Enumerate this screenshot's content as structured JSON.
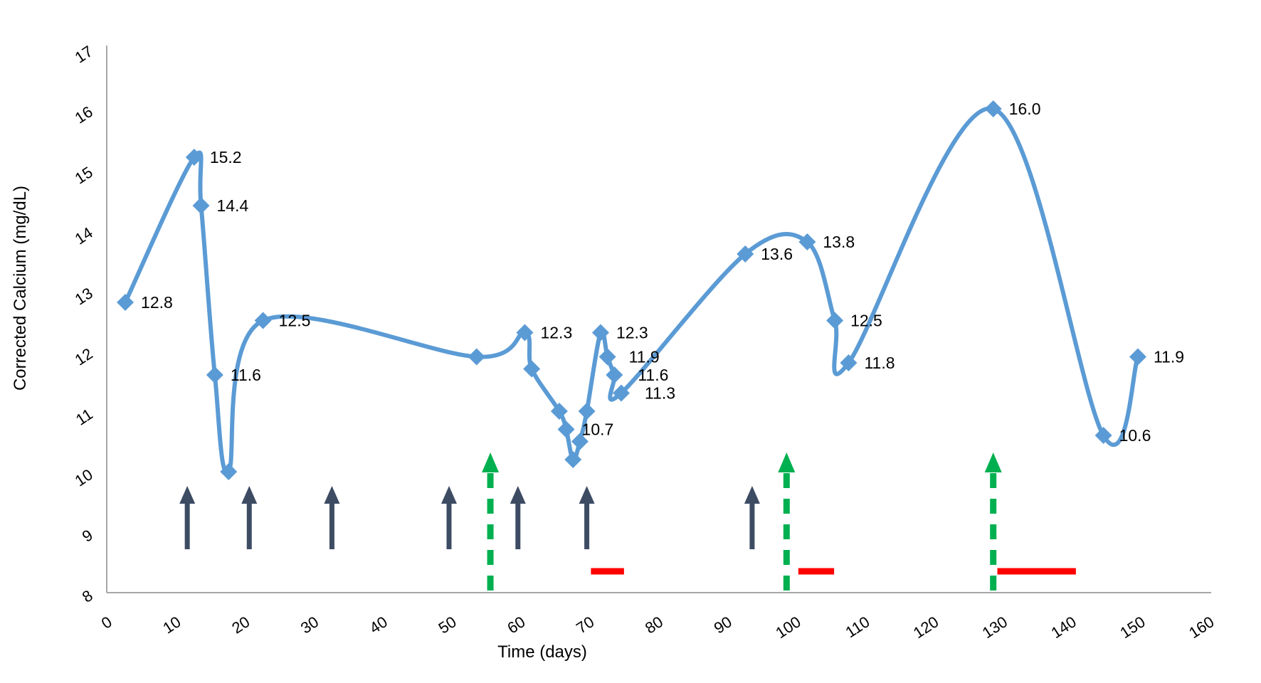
{
  "chart_data": {
    "type": "line",
    "title": "",
    "xlabel": "Time (days)",
    "ylabel": "Corrected Calcium (mg/dL)",
    "xlim": [
      0,
      160
    ],
    "ylim": [
      8,
      17
    ],
    "x_ticks": [
      0,
      10,
      20,
      30,
      40,
      50,
      60,
      70,
      80,
      90,
      100,
      110,
      120,
      130,
      140,
      150,
      160
    ],
    "y_ticks": [
      8,
      9,
      10,
      11,
      12,
      13,
      14,
      15,
      16,
      17
    ],
    "grid": false,
    "legend": false,
    "series": [
      {
        "name": "Corrected Calcium",
        "color": "#5B9BD5",
        "smooth": true,
        "points": [
          {
            "day": 3,
            "value": 12.8,
            "label": "12.8"
          },
          {
            "day": 13,
            "value": 15.2,
            "label": "15.2"
          },
          {
            "day": 14,
            "value": 14.4,
            "label": "14.4"
          },
          {
            "day": 16,
            "value": 11.6,
            "label": "11.6"
          },
          {
            "day": 18,
            "value": 10.0
          },
          {
            "day": 23,
            "value": 12.5,
            "label": "12.5"
          },
          {
            "day": 54,
            "value": 11.9
          },
          {
            "day": 61,
            "value": 12.3,
            "label": "12.3"
          },
          {
            "day": 62,
            "value": 11.7
          },
          {
            "day": 66,
            "value": 11.0
          },
          {
            "day": 67,
            "value": 10.7,
            "label": "10.7"
          },
          {
            "day": 68,
            "value": 10.2
          },
          {
            "day": 69,
            "value": 10.5
          },
          {
            "day": 70,
            "value": 11.0
          },
          {
            "day": 72,
            "value": 12.3,
            "label": "12.3"
          },
          {
            "day": 73,
            "value": 11.9,
            "label": "11.9",
            "ldx": 30
          },
          {
            "day": 74,
            "value": 11.6,
            "label": "11.6",
            "ldx": 33
          },
          {
            "day": 75,
            "value": 11.3,
            "label": "11.3",
            "ldx": 33
          },
          {
            "day": 93,
            "value": 13.6,
            "label": "13.6"
          },
          {
            "day": 102,
            "value": 13.8,
            "label": "13.8"
          },
          {
            "day": 106,
            "value": 12.5,
            "label": "12.5"
          },
          {
            "day": 108,
            "value": 11.8,
            "label": "11.8"
          },
          {
            "day": 129,
            "value": 16.0,
            "label": "16.0"
          },
          {
            "day": 145,
            "value": 10.6,
            "label": "10.6"
          },
          {
            "day": 150,
            "value": 11.9,
            "label": "11.9"
          }
        ]
      }
    ],
    "annotations": {
      "solid_arrows": {
        "name": "treatment-arrow-solid",
        "color": "#3D4C63",
        "days": [
          12,
          21,
          33,
          50,
          60,
          70,
          94
        ]
      },
      "dashed_arrows": {
        "name": "treatment-arrow-dashed",
        "color": "#00B050",
        "days": [
          56,
          99,
          129
        ]
      },
      "red_bars": {
        "name": "treatment-period-bar",
        "color": "#FF0000",
        "value_level": 8.4,
        "spans": [
          {
            "from": 70.6,
            "to": 75.4
          },
          {
            "from": 100.7,
            "to": 105.9
          },
          {
            "from": 129.6,
            "to": 141.0
          }
        ]
      }
    }
  }
}
